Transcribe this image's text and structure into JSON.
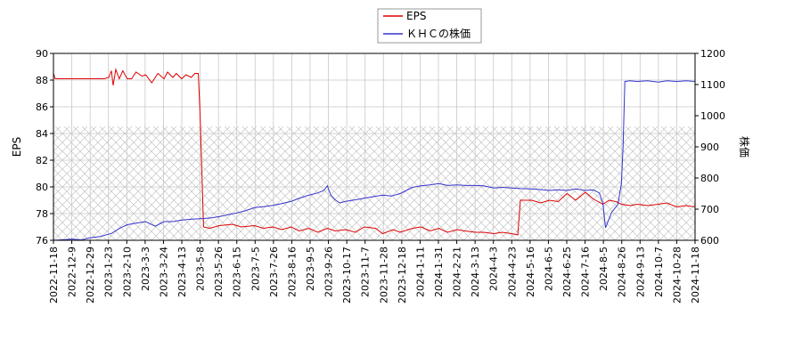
{
  "chart_data": {
    "type": "line",
    "x_ticks": [
      "2022-11-18",
      "2022-12-9",
      "2022-12-29",
      "2023-1-23",
      "2023-2-10",
      "2023-3-3",
      "2023-3-24",
      "2023-4-13",
      "2023-5-8",
      "2023-5-26",
      "2023-6-15",
      "2023-7-5",
      "2023-7-26",
      "2023-8-16",
      "2023-9-5",
      "2023-9-26",
      "2023-10-17",
      "2023-11-7",
      "2023-11-28",
      "2023-12-18",
      "2024-1-11",
      "2024-1-31",
      "2024-2-21",
      "2024-3-13",
      "2024-4-3",
      "2024-4-23",
      "2024-5-16",
      "2024-6-5",
      "2024-6-25",
      "2024-7-16",
      "2024-8-5",
      "2024-8-26",
      "2024-9-13",
      "2024-10-7",
      "2024-10-28",
      "2024-11-18"
    ],
    "left_axis": {
      "label": "EPS",
      "ylim": [
        76,
        90
      ],
      "ticks": [
        "76",
        "78",
        "80",
        "82",
        "84",
        "86",
        "88",
        "90"
      ]
    },
    "right_axis": {
      "label": "株価",
      "ylim": [
        600,
        1200
      ],
      "ticks": [
        "600",
        "700",
        "800",
        "900",
        "1000",
        "1100",
        "1200"
      ]
    },
    "grid": true,
    "legend_position": "top-center",
    "series": [
      {
        "name": "EPS",
        "axis": "left",
        "color": "#dd0000",
        "x": [
          "2022-11-18",
          "2022-11-20",
          "2023-1-15",
          "2023-1-20",
          "2023-1-23",
          "2023-1-25",
          "2023-1-28",
          "2023-2-1",
          "2023-2-5",
          "2023-2-10",
          "2023-2-15",
          "2023-2-20",
          "2023-2-27",
          "2023-3-3",
          "2023-3-10",
          "2023-3-17",
          "2023-3-24",
          "2023-3-28",
          "2023-4-3",
          "2023-4-7",
          "2023-4-13",
          "2023-4-18",
          "2023-4-24",
          "2023-4-28",
          "2023-5-2",
          "2023-5-4",
          "2023-5-8",
          "2023-5-15",
          "2023-5-26",
          "2023-6-10",
          "2023-6-20",
          "2023-7-5",
          "2023-7-15",
          "2023-7-26",
          "2023-8-5",
          "2023-8-16",
          "2023-8-25",
          "2023-9-5",
          "2023-9-15",
          "2023-9-26",
          "2023-10-5",
          "2023-10-17",
          "2023-10-28",
          "2023-11-7",
          "2023-11-20",
          "2023-11-28",
          "2023-12-10",
          "2023-12-18",
          "2024-1-1",
          "2024-1-11",
          "2024-1-21",
          "2024-1-31",
          "2024-2-10",
          "2024-2-21",
          "2024-3-1",
          "2024-3-13",
          "2024-3-22",
          "2024-4-3",
          "2024-4-12",
          "2024-4-23",
          "2024-4-30",
          "2024-5-3",
          "2024-5-16",
          "2024-5-26",
          "2024-6-5",
          "2024-6-15",
          "2024-6-25",
          "2024-7-5",
          "2024-7-16",
          "2024-7-25",
          "2024-8-5",
          "2024-8-12",
          "2024-8-20",
          "2024-8-26",
          "2024-9-5",
          "2024-9-13",
          "2024-9-25",
          "2024-10-7",
          "2024-10-17",
          "2024-10-28",
          "2024-11-8",
          "2024-11-18"
        ],
        "values": [
          88.5,
          88.1,
          88.1,
          88.2,
          88.7,
          87.6,
          88.8,
          88.1,
          88.7,
          88.1,
          88.1,
          88.6,
          88.3,
          88.4,
          87.8,
          88.5,
          88.1,
          88.6,
          88.2,
          88.5,
          88.1,
          88.4,
          88.2,
          88.5,
          88.5,
          85.5,
          77.0,
          76.9,
          77.1,
          77.2,
          77.0,
          77.1,
          76.9,
          77.0,
          76.8,
          77.0,
          76.7,
          76.9,
          76.6,
          76.9,
          76.7,
          76.8,
          76.6,
          77.0,
          76.9,
          76.5,
          76.8,
          76.6,
          76.9,
          77.0,
          76.7,
          76.9,
          76.6,
          76.8,
          76.7,
          76.6,
          76.6,
          76.5,
          76.6,
          76.5,
          76.4,
          79.0,
          79.0,
          78.8,
          79.0,
          78.9,
          79.5,
          79.0,
          79.6,
          79.1,
          78.7,
          79.0,
          78.9,
          78.7,
          78.6,
          78.7,
          78.6,
          78.7,
          78.8,
          78.5,
          78.6,
          78.5
        ]
      },
      {
        "name": "ＫＨＣの株価",
        "axis": "right",
        "color": "#3333cc",
        "x": [
          "2022-11-18",
          "2022-12-1",
          "2022-12-9",
          "2022-12-20",
          "2022-12-29",
          "2023-1-10",
          "2023-1-23",
          "2023-2-1",
          "2023-2-10",
          "2023-2-20",
          "2023-3-3",
          "2023-3-14",
          "2023-3-24",
          "2023-4-3",
          "2023-4-13",
          "2023-4-25",
          "2023-5-8",
          "2023-5-17",
          "2023-5-26",
          "2023-6-5",
          "2023-6-15",
          "2023-6-25",
          "2023-7-5",
          "2023-7-15",
          "2023-7-26",
          "2023-8-5",
          "2023-8-16",
          "2023-8-25",
          "2023-9-5",
          "2023-9-15",
          "2023-9-22",
          "2023-9-26",
          "2023-9-30",
          "2023-10-5",
          "2023-10-10",
          "2023-10-17",
          "2023-10-28",
          "2023-11-7",
          "2023-11-17",
          "2023-11-28",
          "2023-12-8",
          "2023-12-18",
          "2024-1-1",
          "2024-1-11",
          "2024-1-21",
          "2024-1-31",
          "2024-2-10",
          "2024-2-21",
          "2024-3-1",
          "2024-3-13",
          "2024-3-22",
          "2024-4-3",
          "2024-4-13",
          "2024-4-23",
          "2024-5-3",
          "2024-5-16",
          "2024-5-26",
          "2024-6-5",
          "2024-6-15",
          "2024-6-25",
          "2024-7-5",
          "2024-7-16",
          "2024-7-25",
          "2024-8-1",
          "2024-8-5",
          "2024-8-8",
          "2024-8-15",
          "2024-8-22",
          "2024-8-26",
          "2024-8-28",
          "2024-8-30",
          "2024-9-5",
          "2024-9-13",
          "2024-9-25",
          "2024-10-7",
          "2024-10-17",
          "2024-10-28",
          "2024-11-8",
          "2024-11-18"
        ],
        "values": [
          600,
          602,
          604,
          601,
          608,
          612,
          622,
          638,
          650,
          655,
          660,
          645,
          660,
          660,
          665,
          668,
          670,
          672,
          676,
          682,
          688,
          695,
          705,
          708,
          712,
          718,
          725,
          735,
          745,
          752,
          760,
          775,
          745,
          730,
          720,
          725,
          730,
          735,
          740,
          745,
          742,
          750,
          770,
          775,
          778,
          782,
          776,
          778,
          776,
          776,
          775,
          768,
          770,
          768,
          766,
          765,
          763,
          760,
          762,
          760,
          765,
          760,
          762,
          752,
          718,
          640,
          690,
          715,
          780,
          900,
          1110,
          1112,
          1110,
          1112,
          1108,
          1112,
          1110,
          1112,
          1110
        ]
      }
    ]
  }
}
